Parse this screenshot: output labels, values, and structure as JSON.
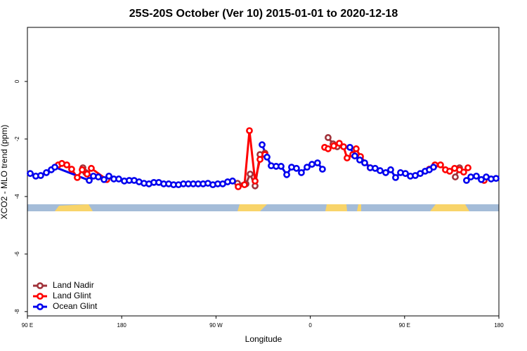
{
  "chart_data": {
    "type": "line",
    "title": "25S-20S October (Ver 10)   2015-01-01 to 2020-12-18",
    "x_label": "Longitude",
    "y_label": "XCO2 - MLO trend (ppm)",
    "xlim": [
      90,
      540
    ],
    "xticks": [
      {
        "value": 90,
        "label": "90 E"
      },
      180,
      {
        "value": 270,
        "label": "90 W"
      },
      {
        "value": 360,
        "label": "0"
      },
      {
        "value": 450,
        "label": "90 E"
      },
      {
        "value": 540,
        "label": "180"
      }
    ],
    "ylim": [
      -8.15,
      1.88
    ],
    "yticks": [
      0,
      -2,
      -4,
      -6,
      -8
    ],
    "legend": "bottom-left",
    "series": [
      {
        "name": "Land Nadir",
        "color": "#a0323a",
        "x": [
          143.0,
          145.7,
          null,
          290.5,
          298.6,
          302.6,
          307.3,
          312.0,
          316.7,
          null,
          377.0,
          381.7,
          385.7,
          null,
          498.4,
          502.4
        ],
        "values": [
          -3.0,
          -3.17,
          null,
          -3.54,
          -3.56,
          -3.22,
          -3.63,
          -2.54,
          -2.49,
          null,
          -1.95,
          -2.17,
          -2.27,
          null,
          -3.32,
          -3.0
        ]
      },
      {
        "name": "Land Glint",
        "color": "#ff0000",
        "x": [
          119.5,
          122.9,
          127.6,
          132.2,
          137.6,
          142.3,
          147.0,
          151.0,
          165.8,
          null,
          291.2,
          297.2,
          301.9,
          307.3,
          312.0,
          316.7,
          null,
          373.7,
          377.0,
          382.4,
          387.7,
          391.8,
          395.1,
          400.5,
          403.8,
          407.9,
          417.2,
          null,
          473.6,
          479.0,
          484.3,
          489.0,
          493.0,
          497.7,
          502.4,
          506.4,
          510.5,
          null,
          525.9
        ],
        "values": [
          -2.9,
          -2.85,
          -2.9,
          -3.05,
          -3.34,
          -3.07,
          -3.22,
          -3.02,
          -3.41,
          null,
          -3.66,
          -3.59,
          -1.71,
          -3.46,
          -2.71,
          -2.54,
          null,
          -2.29,
          -2.34,
          -2.24,
          -2.15,
          -2.27,
          -2.66,
          -2.54,
          -2.34,
          -2.61,
          -3.0,
          null,
          -3.05,
          -2.9,
          -2.9,
          -3.07,
          -3.12,
          -3.02,
          -3.07,
          -3.15,
          -3.0,
          null,
          -3.44
        ]
      },
      {
        "name": "Ocean Glint",
        "color": "#0000ee",
        "x": [
          92.7,
          98.0,
          102.7,
          108.1,
          112.8,
          116.2,
          149.0,
          153.0,
          157.7,
          163.1,
          167.8,
          172.5,
          177.2,
          182.5,
          187.2,
          191.9,
          196.6,
          201.3,
          206.0,
          210.7,
          215.4,
          220.1,
          224.8,
          229.5,
          234.2,
          238.9,
          243.6,
          248.3,
          253.0,
          257.7,
          262.3,
          267.0,
          271.7,
          276.4,
          281.1,
          285.8,
          null,
          314.0,
          318.7,
          322.7,
          327.4,
          332.1,
          337.5,
          342.1,
          346.8,
          351.5,
          356.9,
          361.6,
          366.9,
          371.6,
          null,
          397.8,
          402.5,
          407.2,
          411.9,
          417.2,
          421.9,
          426.6,
          432.0,
          436.7,
          441.4,
          446.1,
          450.8,
          455.5,
          460.2,
          464.9,
          469.6,
          473.6,
          477.6,
          null,
          509.1,
          513.2,
          518.5,
          523.2,
          527.9,
          532.6,
          537.3
        ],
        "values": [
          -3.2,
          -3.29,
          -3.27,
          -3.17,
          -3.07,
          -2.98,
          -3.44,
          -3.29,
          -3.32,
          -3.41,
          -3.29,
          -3.39,
          -3.39,
          -3.46,
          -3.44,
          -3.44,
          -3.49,
          -3.54,
          -3.56,
          -3.51,
          -3.51,
          -3.56,
          -3.56,
          -3.59,
          -3.59,
          -3.56,
          -3.56,
          -3.56,
          -3.56,
          -3.56,
          -3.54,
          -3.59,
          -3.56,
          -3.56,
          -3.49,
          -3.46,
          null,
          -2.2,
          -2.63,
          -2.93,
          -2.95,
          -2.95,
          -3.24,
          -2.98,
          -3.02,
          -3.17,
          -2.98,
          -2.88,
          -2.83,
          -3.05,
          null,
          -2.29,
          -2.59,
          -2.73,
          -2.83,
          -3.0,
          -3.02,
          -3.1,
          -3.17,
          -3.07,
          -3.34,
          -3.17,
          -3.2,
          -3.29,
          -3.27,
          -3.2,
          -3.12,
          -3.07,
          -2.98,
          null,
          -3.44,
          -3.32,
          -3.29,
          -3.41,
          -3.32,
          -3.39,
          -3.37
        ]
      }
    ]
  }
}
